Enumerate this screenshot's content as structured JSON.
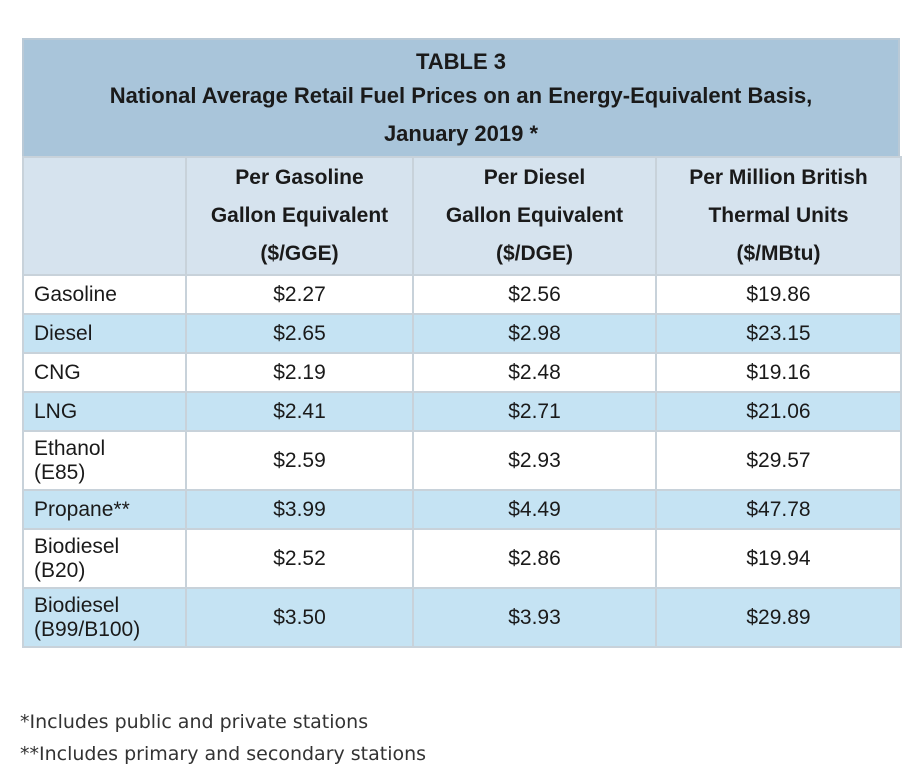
{
  "table": {
    "title_line1": "TABLE 3",
    "title_line2": "National Average Retail Fuel Prices on an Energy-Equivalent Basis,",
    "title_line3": "January 2019 *",
    "columns": [
      {
        "line1": "Per Gasoline",
        "line2": "Gallon Equivalent",
        "line3": "($/GGE)"
      },
      {
        "line1": "Per Diesel",
        "line2": "Gallon Equivalent",
        "line3": "($/DGE)"
      },
      {
        "line1": "Per Million British",
        "line2": "Thermal Units",
        "line3": "($/MBtu)"
      }
    ],
    "rows": [
      {
        "label1": "Gasoline",
        "label2": "",
        "gge": "$2.27",
        "dge": "$2.56",
        "mbtu": "$19.86"
      },
      {
        "label1": "Diesel",
        "label2": "",
        "gge": "$2.65",
        "dge": "$2.98",
        "mbtu": "$23.15"
      },
      {
        "label1": "CNG",
        "label2": "",
        "gge": "$2.19",
        "dge": "$2.48",
        "mbtu": "$19.16"
      },
      {
        "label1": "LNG",
        "label2": "",
        "gge": "$2.41",
        "dge": "$2.71",
        "mbtu": "$21.06"
      },
      {
        "label1": "Ethanol",
        "label2": "(E85)",
        "gge": "$2.59",
        "dge": "$2.93",
        "mbtu": "$29.57"
      },
      {
        "label1": "Propane**",
        "label2": "",
        "gge": "$3.99",
        "dge": "$4.49",
        "mbtu": "$47.78"
      },
      {
        "label1": "Biodiesel",
        "label2": "(B20)",
        "gge": "$2.52",
        "dge": "$2.86",
        "mbtu": "$19.94"
      },
      {
        "label1": "Biodiesel",
        "label2": "(B99/B100)",
        "gge": "$3.50",
        "dge": "$3.93",
        "mbtu": "$29.89"
      }
    ]
  },
  "footnotes": {
    "note1": "*Includes public and private stations",
    "note2": "**Includes primary and secondary stations"
  },
  "colors": {
    "title_bg": "#a9c5da",
    "header_bg": "#d6e3ee",
    "band_bg": "#c5e3f3",
    "border": "#c8d2da"
  }
}
